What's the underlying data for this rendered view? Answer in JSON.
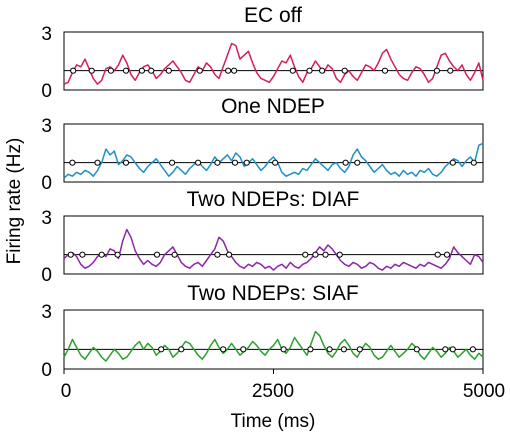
{
  "figure": {
    "ylabel": "Firing rate (Hz)",
    "xlabel": "Time (ms)",
    "xticks": [
      "0",
      "2500",
      "5000"
    ]
  },
  "chart_data": [
    {
      "type": "line",
      "title": "EC off",
      "color": "#d81b60",
      "xlim": [
        0,
        5000
      ],
      "ylim": [
        0,
        3
      ],
      "yticks": [
        "0",
        "3"
      ],
      "threshold": 1.0,
      "x": [
        0,
        50,
        100,
        150,
        200,
        250,
        300,
        350,
        400,
        450,
        500,
        550,
        600,
        650,
        700,
        750,
        800,
        850,
        900,
        950,
        1000,
        1050,
        1100,
        1150,
        1200,
        1250,
        1300,
        1350,
        1400,
        1450,
        1500,
        1550,
        1600,
        1650,
        1700,
        1750,
        1800,
        1850,
        1900,
        1950,
        2000,
        2050,
        2100,
        2150,
        2200,
        2250,
        2300,
        2350,
        2400,
        2450,
        2500,
        2550,
        2600,
        2650,
        2700,
        2750,
        2800,
        2850,
        2900,
        2950,
        3000,
        3050,
        3100,
        3150,
        3200,
        3250,
        3300,
        3350,
        3400,
        3450,
        3500,
        3550,
        3600,
        3650,
        3700,
        3750,
        3800,
        3850,
        3900,
        3950,
        4000,
        4050,
        4100,
        4150,
        4200,
        4250,
        4300,
        4350,
        4400,
        4450,
        4500,
        4550,
        4600,
        4650,
        4700,
        4750,
        4800,
        4850,
        4900,
        4950,
        5000
      ],
      "y": [
        0.3,
        0.4,
        0.9,
        1.3,
        1.2,
        1.6,
        1.1,
        0.6,
        0.3,
        0.5,
        1.1,
        1.2,
        1.0,
        1.3,
        1.8,
        1.4,
        0.8,
        0.5,
        0.9,
        1.2,
        1.3,
        1.0,
        0.6,
        0.8,
        1.1,
        1.3,
        1.5,
        1.2,
        0.9,
        0.5,
        0.4,
        0.8,
        1.2,
        1.0,
        1.4,
        1.2,
        0.8,
        0.6,
        1.2,
        1.8,
        2.4,
        2.3,
        1.6,
        1.8,
        2.0,
        1.4,
        0.9,
        0.6,
        0.5,
        0.4,
        0.7,
        1.1,
        1.5,
        1.4,
        1.8,
        1.2,
        0.7,
        0.4,
        0.9,
        1.1,
        1.5,
        1.2,
        0.9,
        1.3,
        1.1,
        0.6,
        0.4,
        0.8,
        1.0,
        0.7,
        0.5,
        0.9,
        1.3,
        1.2,
        1.0,
        1.4,
        1.9,
        2.1,
        1.6,
        1.2,
        0.8,
        0.6,
        0.5,
        0.9,
        1.2,
        1.1,
        0.8,
        0.4,
        0.6,
        1.2,
        1.8,
        1.9,
        1.5,
        1.2,
        1.0,
        1.3,
        0.8,
        0.5,
        0.9,
        1.4,
        0.5
      ],
      "markers": [
        110,
        330,
        560,
        740,
        930,
        1040,
        1250,
        1620,
        1960,
        2030,
        2730,
        2930,
        3080,
        3350,
        3830,
        4450,
        4610
      ],
      "marker_y": 1.0
    },
    {
      "type": "line",
      "title": "One NDEP",
      "color": "#1e90c8",
      "xlim": [
        0,
        5000
      ],
      "ylim": [
        0,
        3
      ],
      "yticks": [
        "0",
        "3"
      ],
      "threshold": 1.0,
      "x": [
        0,
        50,
        100,
        150,
        200,
        250,
        300,
        350,
        400,
        450,
        500,
        550,
        600,
        650,
        700,
        750,
        800,
        850,
        900,
        950,
        1000,
        1050,
        1100,
        1150,
        1200,
        1250,
        1300,
        1350,
        1400,
        1450,
        1500,
        1550,
        1600,
        1650,
        1700,
        1750,
        1800,
        1850,
        1900,
        1950,
        2000,
        2050,
        2100,
        2150,
        2200,
        2250,
        2300,
        2350,
        2400,
        2450,
        2500,
        2550,
        2600,
        2650,
        2700,
        2750,
        2800,
        2850,
        2900,
        2950,
        3000,
        3050,
        3100,
        3150,
        3200,
        3250,
        3300,
        3350,
        3400,
        3450,
        3500,
        3550,
        3600,
        3650,
        3700,
        3750,
        3800,
        3850,
        3900,
        3950,
        4000,
        4050,
        4100,
        4150,
        4200,
        4250,
        4300,
        4350,
        4400,
        4450,
        4500,
        4550,
        4600,
        4650,
        4700,
        4750,
        4800,
        4850,
        4900,
        4950,
        5000
      ],
      "y": [
        0.2,
        0.4,
        0.3,
        0.5,
        0.4,
        0.6,
        0.5,
        0.3,
        0.6,
        1.0,
        1.7,
        1.4,
        1.6,
        0.9,
        1.1,
        1.4,
        1.3,
        1.0,
        0.7,
        0.5,
        0.8,
        1.0,
        1.2,
        0.9,
        0.6,
        0.3,
        0.5,
        0.8,
        0.6,
        0.4,
        0.7,
        0.9,
        1.1,
        0.8,
        0.6,
        0.9,
        1.3,
        1.0,
        1.2,
        1.4,
        1.1,
        1.5,
        1.3,
        0.8,
        1.0,
        1.2,
        0.9,
        0.6,
        0.8,
        1.1,
        1.3,
        1.0,
        0.5,
        0.3,
        0.4,
        0.5,
        0.4,
        0.7,
        0.6,
        0.9,
        1.2,
        1.0,
        0.8,
        0.6,
        0.9,
        1.0,
        0.7,
        0.5,
        0.8,
        1.4,
        1.7,
        1.3,
        1.1,
        0.8,
        0.5,
        0.7,
        0.9,
        0.6,
        0.4,
        0.5,
        0.3,
        0.6,
        0.4,
        0.5,
        0.3,
        0.6,
        0.5,
        0.7,
        0.4,
        0.3,
        0.5,
        0.8,
        1.0,
        1.2,
        1.1,
        0.8,
        1.1,
        1.3,
        1.0,
        1.9,
        2.0
      ],
      "markers": [
        100,
        400,
        740,
        1290,
        1600,
        1830,
        2040,
        2180,
        2520,
        3360,
        3500,
        4640,
        4890
      ],
      "marker_y": 1.0
    },
    {
      "type": "line",
      "title": "Two NDEPs: DIAF",
      "color": "#8e24aa",
      "xlim": [
        0,
        5000
      ],
      "ylim": [
        0,
        3
      ],
      "yticks": [
        "0",
        "3"
      ],
      "threshold": 1.0,
      "x": [
        0,
        50,
        100,
        150,
        200,
        250,
        300,
        350,
        400,
        450,
        500,
        550,
        600,
        650,
        700,
        750,
        800,
        850,
        900,
        950,
        1000,
        1050,
        1100,
        1150,
        1200,
        1250,
        1300,
        1350,
        1400,
        1450,
        1500,
        1550,
        1600,
        1650,
        1700,
        1750,
        1800,
        1850,
        1900,
        1950,
        2000,
        2050,
        2100,
        2150,
        2200,
        2250,
        2300,
        2350,
        2400,
        2450,
        2500,
        2550,
        2600,
        2650,
        2700,
        2750,
        2800,
        2850,
        2900,
        2950,
        3000,
        3050,
        3100,
        3150,
        3200,
        3250,
        3300,
        3350,
        3400,
        3450,
        3500,
        3550,
        3600,
        3650,
        3700,
        3750,
        3800,
        3850,
        3900,
        3950,
        4000,
        4050,
        4100,
        4150,
        4200,
        4250,
        4300,
        4350,
        4400,
        4450,
        4500,
        4550,
        4600,
        4650,
        4700,
        4750,
        4800,
        4850,
        4900,
        4950,
        5000
      ],
      "y": [
        0.8,
        1.0,
        1.1,
        0.9,
        0.5,
        0.3,
        0.4,
        0.6,
        0.9,
        1.1,
        0.9,
        1.3,
        1.2,
        0.8,
        1.7,
        2.3,
        1.9,
        1.2,
        0.8,
        0.5,
        0.7,
        0.5,
        0.4,
        0.6,
        1.0,
        1.2,
        1.4,
        1.0,
        0.6,
        0.4,
        0.3,
        0.5,
        0.6,
        0.4,
        0.7,
        1.0,
        1.3,
        1.9,
        1.7,
        1.2,
        0.9,
        0.6,
        0.4,
        0.3,
        0.5,
        0.4,
        0.6,
        0.5,
        0.3,
        0.4,
        0.2,
        0.4,
        0.5,
        0.3,
        0.6,
        0.4,
        0.3,
        0.5,
        0.6,
        0.8,
        1.1,
        1.4,
        1.2,
        1.5,
        1.3,
        1.0,
        0.7,
        0.5,
        0.4,
        0.6,
        0.5,
        0.3,
        0.4,
        0.6,
        0.5,
        0.3,
        0.2,
        0.4,
        0.3,
        0.5,
        0.4,
        0.6,
        0.5,
        0.4,
        0.3,
        0.5,
        0.4,
        0.6,
        0.5,
        0.4,
        0.3,
        0.5,
        0.8,
        1.4,
        1.1,
        0.9,
        0.7,
        0.5,
        1.0,
        0.9,
        0.6
      ],
      "markers": [
        80,
        220,
        450,
        640,
        1110,
        1320,
        1830,
        1970,
        2880,
        3000,
        3120,
        3290,
        4460,
        4570
      ],
      "marker_y": 1.0
    },
    {
      "type": "line",
      "title": "Two NDEPs: SIAF",
      "color": "#2ca02c",
      "xlim": [
        0,
        5000
      ],
      "ylim": [
        0,
        3
      ],
      "yticks": [
        "0",
        "3"
      ],
      "threshold": 1.0,
      "x": [
        0,
        50,
        100,
        150,
        200,
        250,
        300,
        350,
        400,
        450,
        500,
        550,
        600,
        650,
        700,
        750,
        800,
        850,
        900,
        950,
        1000,
        1050,
        1100,
        1150,
        1200,
        1250,
        1300,
        1350,
        1400,
        1450,
        1500,
        1550,
        1600,
        1650,
        1700,
        1750,
        1800,
        1850,
        1900,
        1950,
        2000,
        2050,
        2100,
        2150,
        2200,
        2250,
        2300,
        2350,
        2400,
        2450,
        2500,
        2550,
        2600,
        2650,
        2700,
        2750,
        2800,
        2850,
        2900,
        2950,
        3000,
        3050,
        3100,
        3150,
        3200,
        3250,
        3300,
        3350,
        3400,
        3450,
        3500,
        3550,
        3600,
        3650,
        3700,
        3750,
        3800,
        3850,
        3900,
        3950,
        4000,
        4050,
        4100,
        4150,
        4200,
        4250,
        4300,
        4350,
        4400,
        4450,
        4500,
        4550,
        4600,
        4650,
        4700,
        4750,
        4800,
        4850,
        4900,
        4950,
        5000
      ],
      "y": [
        0.6,
        1.0,
        1.5,
        1.1,
        0.7,
        0.5,
        0.8,
        1.1,
        0.9,
        0.6,
        0.4,
        0.7,
        1.0,
        0.8,
        0.5,
        0.6,
        0.9,
        1.2,
        1.4,
        1.0,
        1.3,
        1.1,
        0.7,
        0.9,
        1.2,
        1.0,
        0.6,
        0.8,
        1.1,
        1.4,
        1.3,
        1.0,
        0.7,
        0.5,
        0.8,
        1.2,
        1.5,
        1.1,
        0.8,
        1.0,
        1.3,
        1.0,
        0.7,
        0.9,
        1.1,
        1.4,
        1.2,
        0.9,
        0.7,
        1.0,
        1.2,
        1.5,
        1.0,
        0.8,
        1.1,
        1.6,
        1.3,
        1.0,
        0.7,
        1.3,
        1.9,
        1.7,
        1.2,
        0.8,
        0.6,
        0.9,
        1.3,
        1.5,
        1.2,
        0.8,
        0.6,
        1.0,
        1.3,
        1.1,
        0.7,
        0.5,
        0.6,
        0.9,
        1.2,
        0.9,
        0.6,
        0.8,
        1.0,
        1.3,
        1.1,
        0.7,
        0.5,
        0.8,
        1.1,
        0.9,
        0.6,
        0.8,
        1.1,
        0.9,
        0.6,
        0.8,
        1.0,
        0.7,
        0.5,
        0.8,
        0.6
      ],
      "markers": [
        1160,
        1400,
        1900,
        2140,
        2620,
        2940,
        3170,
        3340,
        3530,
        4210,
        4550,
        4640,
        4880
      ],
      "marker_y": 1.0
    }
  ]
}
